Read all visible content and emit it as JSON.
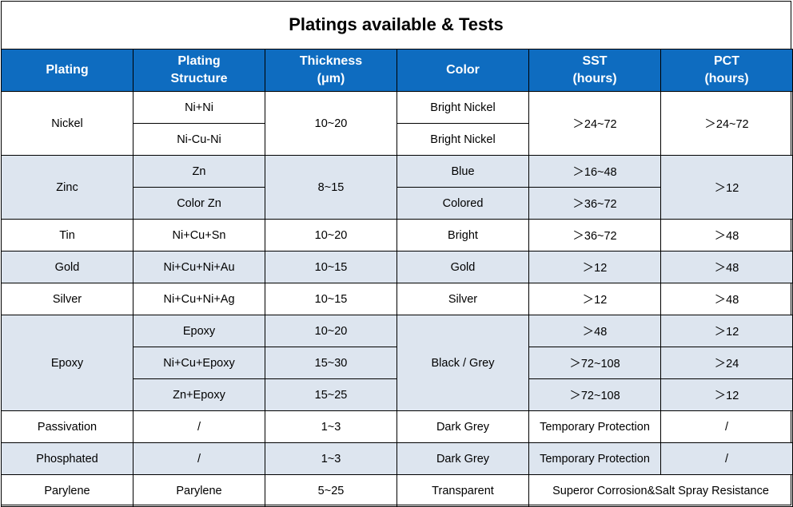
{
  "title": "Platings available & Tests",
  "headers": {
    "plating": [
      "Plating"
    ],
    "structure": [
      "Plating",
      "Structure"
    ],
    "thickness": [
      "Thickness",
      "(μm)"
    ],
    "color": [
      "Color"
    ],
    "sst": [
      "SST",
      "(hours)"
    ],
    "pct": [
      "PCT",
      "(hours)"
    ]
  },
  "rows": {
    "nickel": {
      "plating": "Nickel",
      "structure": [
        "Ni+Ni",
        "Ni-Cu-Ni"
      ],
      "thickness": "10~20",
      "color": [
        "Bright Nickel",
        "Bright Nickel"
      ],
      "sst": "＞24~72",
      "pct": "＞24~72"
    },
    "zinc": {
      "plating": "Zinc",
      "structure": [
        "Zn",
        "Color Zn"
      ],
      "thickness": "8~15",
      "color": [
        "Blue",
        "Colored"
      ],
      "sst": [
        "＞16~48",
        "＞36~72"
      ],
      "pct": "＞12"
    },
    "tin": {
      "plating": "Tin",
      "structure": "Ni+Cu+Sn",
      "thickness": "10~20",
      "color": "Bright",
      "sst": "＞36~72",
      "pct": "＞48"
    },
    "gold": {
      "plating": "Gold",
      "structure": "Ni+Cu+Ni+Au",
      "thickness": "10~15",
      "color": "Gold",
      "sst": "＞12",
      "pct": "＞48"
    },
    "silver": {
      "plating": "Silver",
      "structure": "Ni+Cu+Ni+Ag",
      "thickness": "10~15",
      "color": "Silver",
      "sst": "＞12",
      "pct": "＞48"
    },
    "epoxy": {
      "plating": "Epoxy",
      "structure": [
        "Epoxy",
        "Ni+Cu+Epoxy",
        "Zn+Epoxy"
      ],
      "thickness": [
        "10~20",
        "15~30",
        "15~25"
      ],
      "color": "Black / Grey",
      "sst": [
        "＞48",
        "＞72~108",
        "＞72~108"
      ],
      "pct": [
        "＞12",
        "＞24",
        "＞12"
      ]
    },
    "passivation": {
      "plating": "Passivation",
      "structure": "/",
      "thickness": "1~3",
      "color": "Dark Grey",
      "sst": "Temporary Protection",
      "pct": "/"
    },
    "phosphated": {
      "plating": "Phosphated",
      "structure": "/",
      "thickness": "1~3",
      "color": "Dark Grey",
      "sst": "Temporary Protection",
      "pct": "/"
    },
    "parylene": {
      "plating": "Parylene",
      "structure": "Parylene",
      "thickness": "5~25",
      "color": "Transparent",
      "sst_pct": "Superor Corrosion&Salt Spray Resistance"
    }
  },
  "colors": {
    "header_bg": "#0e6cc0",
    "header_text": "#ffffff",
    "band_bg": "#dde5ef",
    "border": "#000000"
  }
}
